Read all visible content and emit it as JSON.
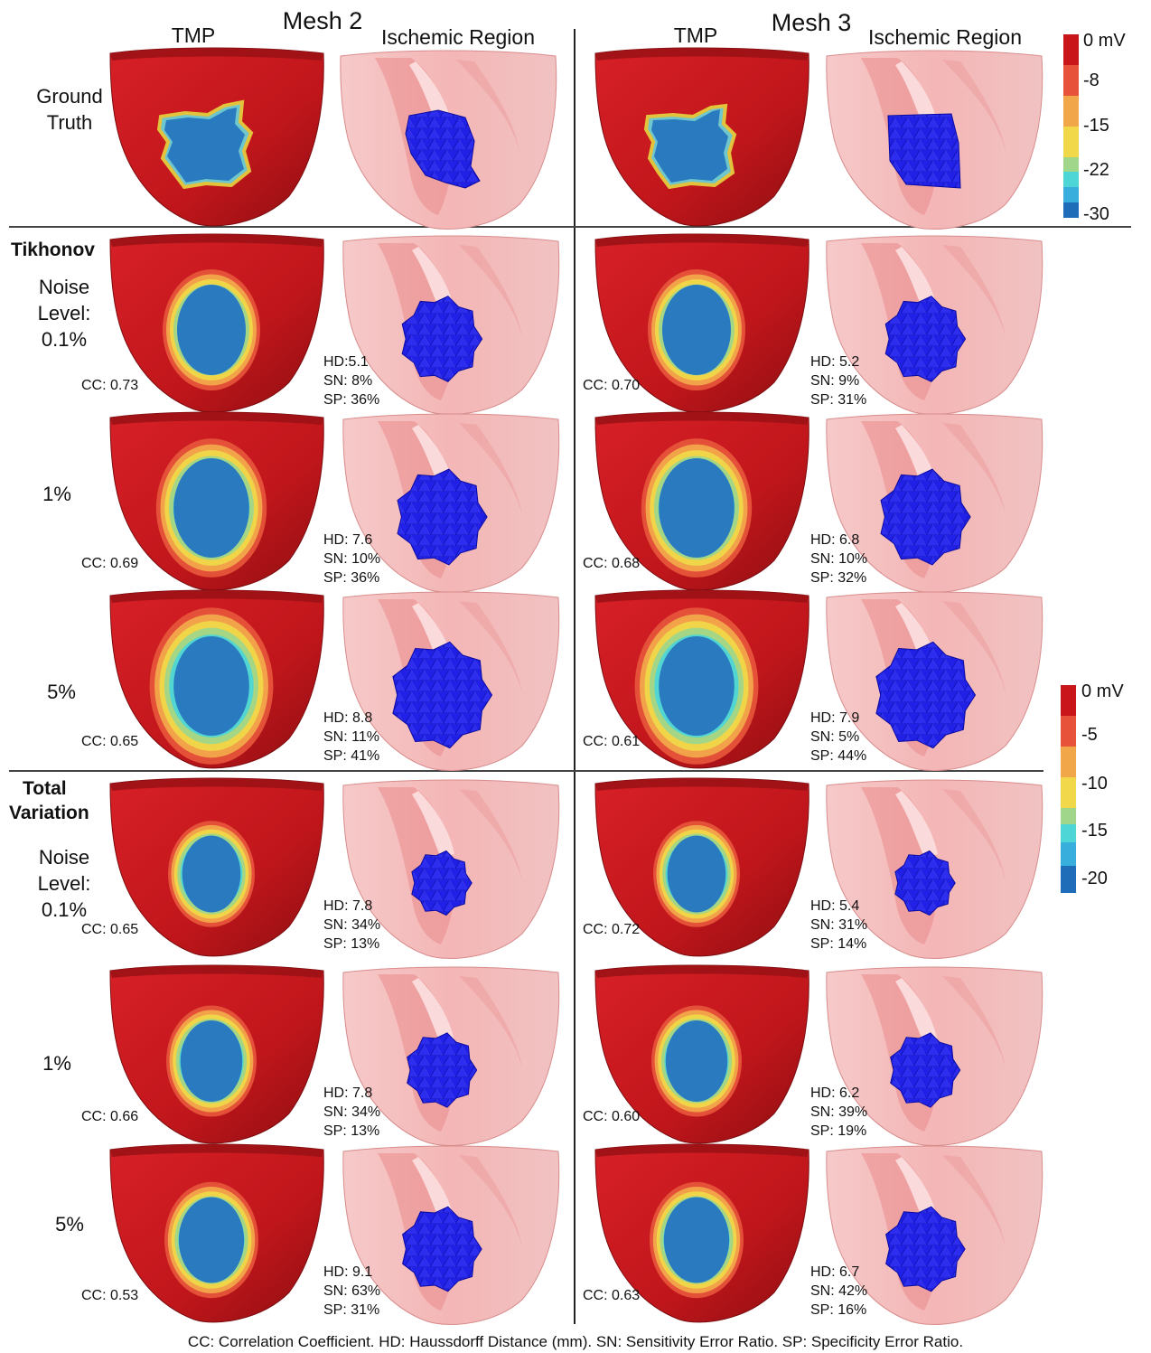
{
  "mesh2_title": "Mesh 2",
  "mesh3_title": "Mesh 3",
  "col_tmp": "TMP",
  "col_ischemic": "Ischemic Region",
  "ground_truth_label_1": "Ground",
  "ground_truth_label_2": "Truth",
  "tikhonov_label": "Tikhonov",
  "tv_label_1": "Total",
  "tv_label_2": "Variation",
  "noise_label_1": "Noise",
  "noise_label_2": "Level:",
  "noise_levels": [
    "0.1%",
    "1%",
    "5%"
  ],
  "colorbar_top": {
    "labels": [
      "0 mV",
      "-8",
      "-15",
      "-22",
      "-30"
    ]
  },
  "colorbar_bottom": {
    "labels": [
      "0 mV",
      "-5",
      "-10",
      "-15",
      "-20"
    ]
  },
  "colors": {
    "healthy": "#c8161b",
    "ischemic_core": "#2a7abf",
    "ischemic_mesh": "#1e1ee0",
    "heart_shell": "#f2a8a8"
  },
  "results": {
    "tikhonov": [
      {
        "mesh2": {
          "cc": "CC: 0.73",
          "hd": "HD:5.1",
          "sn": "SN: 8%",
          "sp": "SP: 36%"
        },
        "mesh3": {
          "cc": "CC: 0.70",
          "hd": "HD: 5.2",
          "sn": "SN: 9%",
          "sp": "SP: 31%"
        }
      },
      {
        "mesh2": {
          "cc": "CC: 0.69",
          "hd": "HD: 7.6",
          "sn": "SN: 10%",
          "sp": "SP: 36%"
        },
        "mesh3": {
          "cc": "CC: 0.68",
          "hd": "HD: 6.8",
          "sn": "SN: 10%",
          "sp": "SP: 32%"
        }
      },
      {
        "mesh2": {
          "cc": "CC: 0.65",
          "hd": "HD: 8.8",
          "sn": "SN: 11%",
          "sp": "SP: 41%"
        },
        "mesh3": {
          "cc": "CC: 0.61",
          "hd": "HD: 7.9",
          "sn": "SN: 5%",
          "sp": "SP: 44%"
        }
      }
    ],
    "total_variation": [
      {
        "mesh2": {
          "cc": "CC: 0.65",
          "hd": "HD: 7.8",
          "sn": "SN: 34%",
          "sp": "SP: 13%"
        },
        "mesh3": {
          "cc": "CC: 0.72",
          "hd": "HD: 5.4",
          "sn": "SN: 31%",
          "sp": "SP: 14%"
        }
      },
      {
        "mesh2": {
          "cc": "CC: 0.66",
          "hd": "HD: 7.8",
          "sn": "SN: 34%",
          "sp": "SP: 13%"
        },
        "mesh3": {
          "cc": "CC: 0.60",
          "hd": "HD: 6.2",
          "sn": "SN: 39%",
          "sp": "SP: 19%"
        }
      },
      {
        "mesh2": {
          "cc": "CC: 0.53",
          "hd": "HD: 9.1",
          "sn": "SN: 63%",
          "sp": "SP: 31%"
        },
        "mesh3": {
          "cc": "CC: 0.63",
          "hd": "HD: 6.7",
          "sn": "SN: 42%",
          "sp": "SP: 16%"
        }
      }
    ]
  },
  "footer": "CC: Correlation Coefficient. HD: Haussdorff Distance (mm). SN: Sensitivity Error Ratio. SP: Specificity Error Ratio."
}
